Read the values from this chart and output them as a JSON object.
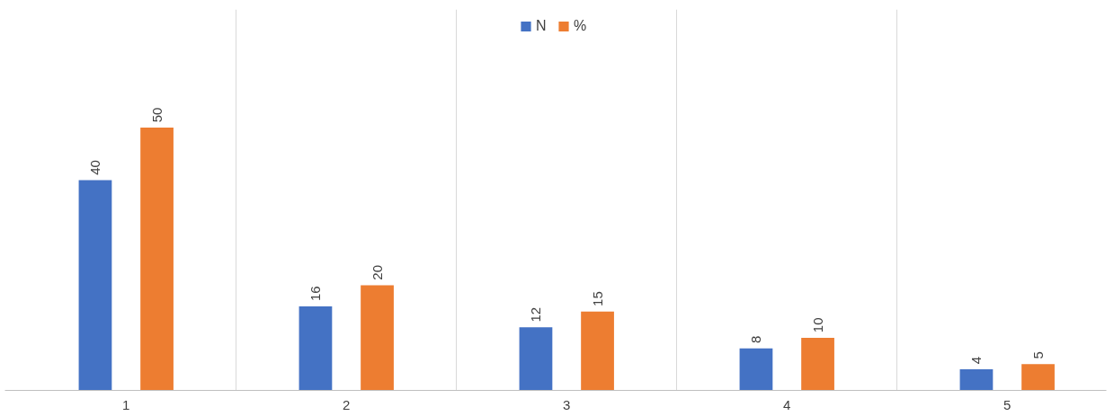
{
  "chart_data": {
    "type": "bar",
    "categories": [
      "1",
      "2",
      "3",
      "4",
      "5"
    ],
    "series": [
      {
        "name": "N",
        "color": "#4472c4",
        "values": [
          40,
          16,
          12,
          8,
          4
        ]
      },
      {
        "name": "%",
        "color": "#ed7d31",
        "values": [
          50,
          20,
          15,
          10,
          5
        ]
      }
    ],
    "data_labels": true,
    "grid": "x",
    "legend": "top"
  }
}
